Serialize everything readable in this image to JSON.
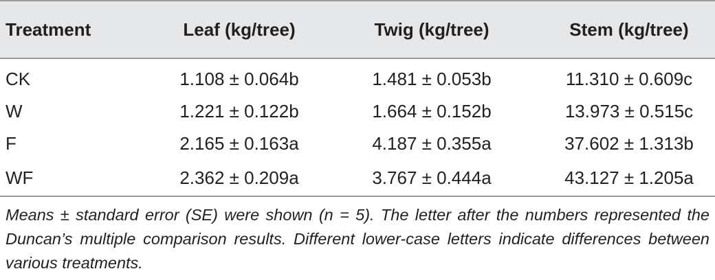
{
  "table": {
    "headers": [
      "Treatment",
      "Leaf (kg/tree)",
      "Twig (kg/tree)",
      "Stem (kg/tree)"
    ],
    "rows": [
      [
        "CK",
        "1.108 ± 0.064b",
        "1.481 ± 0.053b",
        "11.310 ± 0.609c"
      ],
      [
        "W",
        "1.221 ± 0.122b",
        "1.664 ± 0.152b",
        "13.973 ± 0.515c"
      ],
      [
        "F",
        "2.165 ± 0.163a",
        "4.187 ± 0.355a",
        "37.602 ± 1.313b"
      ],
      [
        "WF",
        "2.362 ± 0.209a",
        "3.767 ± 0.444a",
        "43.127 ± 1.205a"
      ]
    ]
  },
  "footnote": "Means ± standard error (SE) were shown (n = 5). The letter after the numbers represented the Duncan’s multiple comparison results. Different lower-case letters indicate differences between various treatments."
}
